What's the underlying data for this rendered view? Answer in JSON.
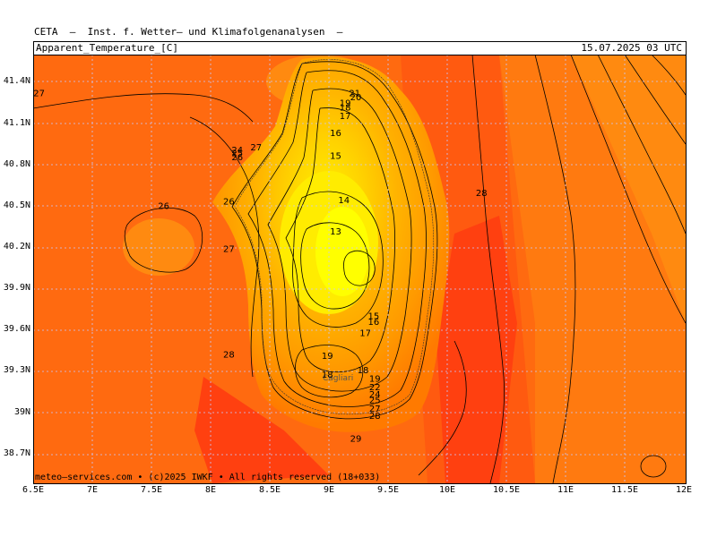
{
  "header": {
    "title": "CETA  —  Inst. f. Wetter— und Klimafolgenanalysen  —",
    "variable": "Apparent_Temperature_[C]",
    "datetime": "15.07.2025  03  UTC"
  },
  "footer": {
    "credit": "meteo—services.com • (c)2025 IWKF • All rights reserved (18+033)"
  },
  "axes": {
    "y_ticks": [
      "41.4N",
      "41.1N",
      "40.8N",
      "40.5N",
      "40.2N",
      "39.9N",
      "39.6N",
      "39.3N",
      "39N",
      "38.7N"
    ],
    "x_ticks": [
      "6.5E",
      "7E",
      "7.5E",
      "8E",
      "8.5E",
      "9E",
      "9.5E",
      "10E",
      "10.5E",
      "11E",
      "11.5E",
      "12E"
    ]
  },
  "map": {
    "place_label": "Cagliari",
    "contour_labels": [
      {
        "text": "27",
        "lon": 6.55,
        "lat": 41.26
      },
      {
        "text": "27",
        "lon": 8.38,
        "lat": 40.88
      },
      {
        "text": "24",
        "lon": 8.22,
        "lat": 40.86
      },
      {
        "text": "25",
        "lon": 8.22,
        "lat": 40.84
      },
      {
        "text": "26",
        "lon": 8.22,
        "lat": 40.81
      },
      {
        "text": "26",
        "lon": 7.6,
        "lat": 40.47
      },
      {
        "text": "26",
        "lon": 8.15,
        "lat": 40.5
      },
      {
        "text": "27",
        "lon": 8.15,
        "lat": 40.17
      },
      {
        "text": "21",
        "lon": 9.21,
        "lat": 41.26
      },
      {
        "text": "20",
        "lon": 9.22,
        "lat": 41.23
      },
      {
        "text": "19",
        "lon": 9.13,
        "lat": 41.19
      },
      {
        "text": "18",
        "lon": 9.13,
        "lat": 41.16
      },
      {
        "text": "17",
        "lon": 9.13,
        "lat": 41.1
      },
      {
        "text": "16",
        "lon": 9.05,
        "lat": 40.98
      },
      {
        "text": "15",
        "lon": 9.05,
        "lat": 40.82
      },
      {
        "text": "14",
        "lon": 9.12,
        "lat": 40.51
      },
      {
        "text": "13",
        "lon": 9.05,
        "lat": 40.29
      },
      {
        "text": "15",
        "lon": 9.37,
        "lat": 39.7
      },
      {
        "text": "16",
        "lon": 9.37,
        "lat": 39.66
      },
      {
        "text": "17",
        "lon": 9.3,
        "lat": 39.58
      },
      {
        "text": "19",
        "lon": 8.98,
        "lat": 39.42
      },
      {
        "text": "18",
        "lon": 8.98,
        "lat": 39.29
      },
      {
        "text": "18",
        "lon": 9.28,
        "lat": 39.32
      },
      {
        "text": "19",
        "lon": 9.38,
        "lat": 39.26
      },
      {
        "text": "22",
        "lon": 9.38,
        "lat": 39.2
      },
      {
        "text": "24",
        "lon": 9.38,
        "lat": 39.15
      },
      {
        "text": "25",
        "lon": 9.38,
        "lat": 39.11
      },
      {
        "text": "27",
        "lon": 9.38,
        "lat": 39.05
      },
      {
        "text": "28",
        "lon": 9.38,
        "lat": 39.0
      },
      {
        "text": "29",
        "lon": 9.22,
        "lat": 38.84
      },
      {
        "text": "28",
        "lon": 8.15,
        "lat": 39.43
      },
      {
        "text": "28",
        "lon": 10.28,
        "lat": 40.56
      }
    ]
  }
}
